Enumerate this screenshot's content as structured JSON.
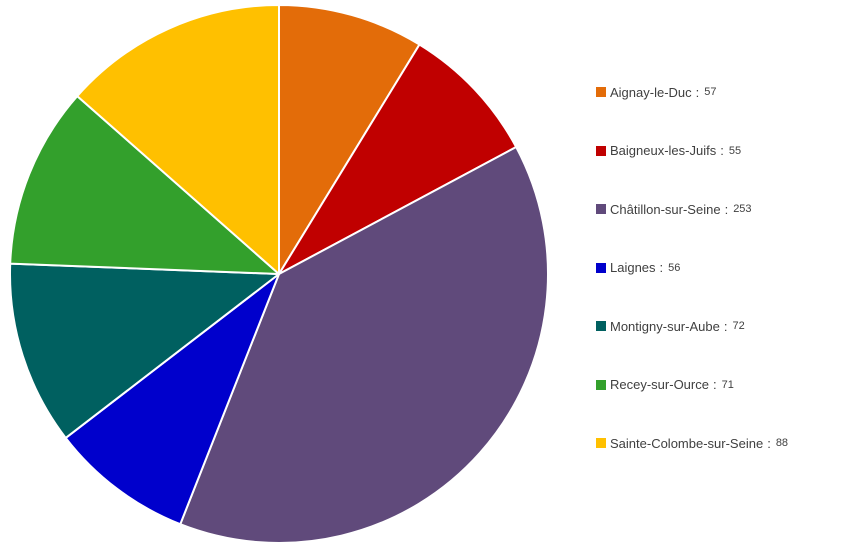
{
  "chart_data": {
    "type": "pie",
    "title": "",
    "start_angle_deg": 0,
    "direction": "clockwise",
    "legend_position": "right",
    "separator": ":",
    "slices": [
      {
        "label": "Aignay-le-Duc",
        "value": 57,
        "color": "#E36C09"
      },
      {
        "label": "Baigneux-les-Juifs",
        "value": 55,
        "color": "#C00000"
      },
      {
        "label": "Châtillon-sur-Seine",
        "value": 253,
        "color": "#604A7B"
      },
      {
        "label": "Laignes",
        "value": 56,
        "color": "#0000CC"
      },
      {
        "label": "Montigny-sur-Aube",
        "value": 72,
        "color": "#006060"
      },
      {
        "label": "Recey-sur-Ource",
        "value": 71,
        "color": "#33A02C"
      },
      {
        "label": "Sainte-Colombe-sur-Seine",
        "value": 88,
        "color": "#FFC000"
      }
    ]
  }
}
